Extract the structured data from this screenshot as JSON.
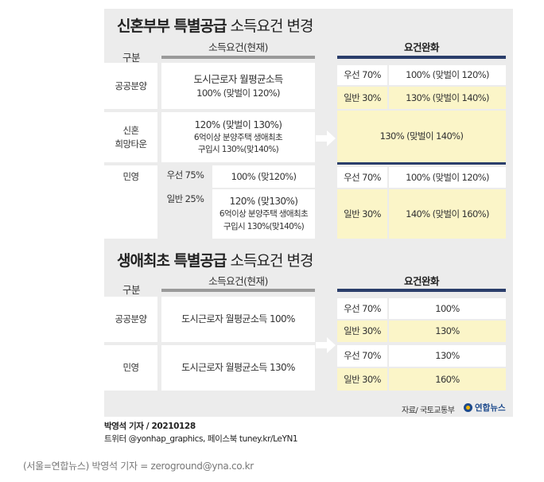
{
  "section1": {
    "title_bold": "신혼부부 특별공급",
    "title_rest": "소득요건 변경",
    "col_group": "구분",
    "col_current": "소득요건(현재)",
    "col_relaxed": "요건완화",
    "rows": {
      "public": {
        "label": "공공분양",
        "current_line1": "도시근로자 월평균소득",
        "current_line2": "100% (맞벌이 120%)",
        "priority_label": "우선 70%",
        "priority_value": "100% (맞벌이 120%)",
        "general_label": "일반 30%",
        "general_value": "130% (맞벌이 140%)"
      },
      "newlywed_town": {
        "label_line1": "신혼",
        "label_line2": "희망타운",
        "current_line1": "120% (맞벌이 130%)",
        "current_line2": "6억이상 분양주택 생애최초",
        "current_line3": "구입시 130%(맞140%)",
        "relaxed_value": "130% (맞벌이 140%)"
      },
      "private": {
        "label": "민영",
        "priority_label": "우선 75%",
        "priority_current": "100% (맞120%)",
        "general_label": "일반 25%",
        "general_current_line1": "120% (맞130%)",
        "general_current_line2": "6억이상 분양주택 생애최초",
        "general_current_line3": "구입시 130%(맞140%)",
        "relaxed_priority_label": "우선 70%",
        "relaxed_priority_value": "100% (맞벌이 120%)",
        "relaxed_general_label": "일반 30%",
        "relaxed_general_value": "140% (맞벌이 160%)"
      }
    }
  },
  "section2": {
    "title_bold": "생애최초 특별공급",
    "title_rest": "소득요건 변경",
    "col_group": "구분",
    "col_current": "소득요건(현재)",
    "col_relaxed": "요건완화",
    "rows": {
      "public": {
        "label": "공공분양",
        "current": "도시근로자 월평균소득 100%",
        "priority_label": "우선 70%",
        "priority_value": "100%",
        "general_label": "일반 30%",
        "general_value": "130%"
      },
      "private": {
        "label": "민영",
        "current": "도시근로자 월평균소득 130%",
        "priority_label": "우선 70%",
        "priority_value": "130%",
        "general_label": "일반 30%",
        "general_value": "160%"
      }
    }
  },
  "source": "자료/ 국토교통부",
  "logo_text": "연합뉴스",
  "credit_line1": "박영석 기자 / 20210128",
  "credit_line2": "트위터 @yonhap_graphics, 페이스북 tuney.kr/LeYN1",
  "footer": "(서울=연합뉴스) 박영석 기자 = zeroground@yna.co.kr",
  "colors": {
    "panel": "#ececec",
    "highlight": "#fbf5c8",
    "relaxed_bar": "#2b3e6b",
    "current_bar": "#9a9a9a",
    "logo": "#1d4a8c"
  }
}
